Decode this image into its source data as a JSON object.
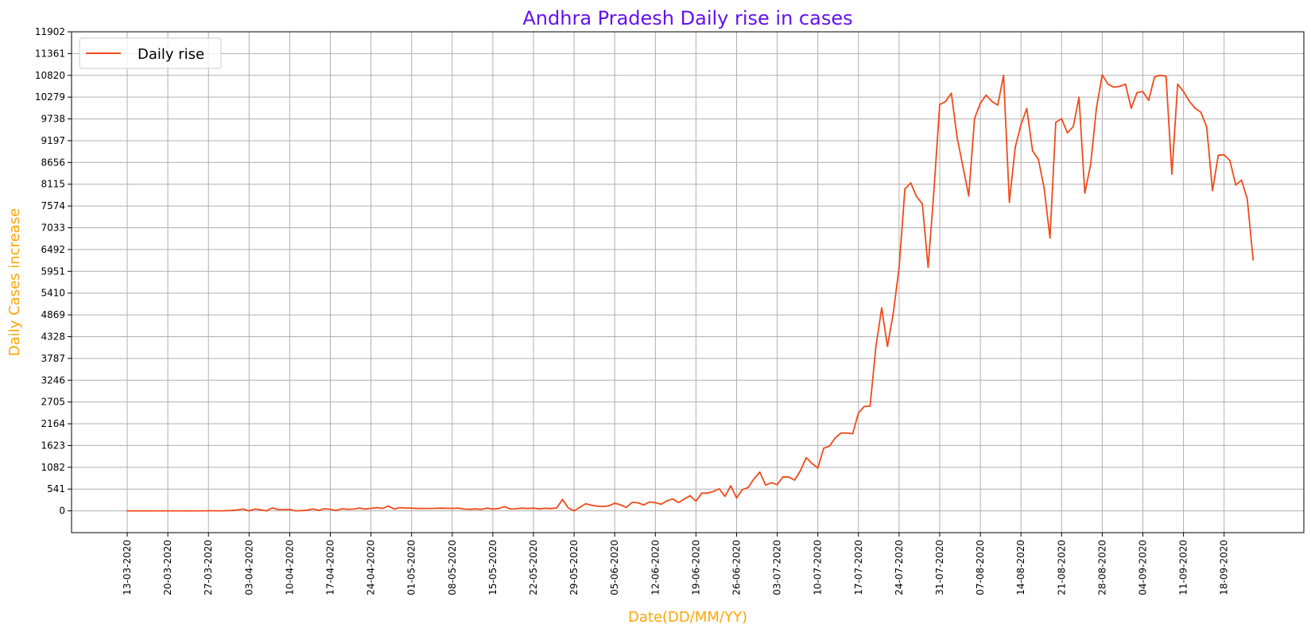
{
  "chart_data": {
    "type": "line",
    "title": "Andhra Pradesh Daily rise in cases",
    "xlabel": "Date(DD/MM/YY)",
    "ylabel": "Daily Cases increase",
    "x_start": "13-03-2020",
    "x_end": "24-09-2020",
    "x_step_days": 1,
    "x_tick_labels": [
      "13-03-2020",
      "20-03-2020",
      "27-03-2020",
      "03-04-2020",
      "10-04-2020",
      "17-04-2020",
      "24-04-2020",
      "01-05-2020",
      "08-05-2020",
      "15-05-2020",
      "22-05-2020",
      "29-05-2020",
      "05-06-2020",
      "12-06-2020",
      "19-06-2020",
      "26-06-2020",
      "03-07-2020",
      "10-07-2020",
      "17-07-2020",
      "24-07-2020",
      "31-07-2020",
      "07-08-2020",
      "14-08-2020",
      "21-08-2020",
      "28-08-2020",
      "04-09-2020",
      "11-09-2020",
      "18-09-2020"
    ],
    "y_ticks": [
      0,
      541,
      1082,
      1623,
      2164,
      2705,
      3246,
      3787,
      4328,
      4869,
      5410,
      5951,
      6492,
      7033,
      7574,
      8115,
      8656,
      9197,
      9738,
      10279,
      10820,
      11361,
      11902
    ],
    "ylim": [
      -541,
      11902
    ],
    "grid": true,
    "legend_position": "top-left",
    "series": [
      {
        "name": "Daily rise",
        "color": "#f24a1a",
        "values": [
          1,
          0,
          0,
          0,
          0,
          0,
          1,
          0,
          0,
          1,
          0,
          0,
          1,
          0,
          2,
          2,
          0,
          4,
          9,
          23,
          43,
          0,
          44,
          28,
          0,
          74,
          31,
          31,
          35,
          0,
          6,
          16,
          46,
          14,
          51,
          40,
          10,
          52,
          39,
          43,
          69,
          45,
          61,
          82,
          60,
          119,
          45,
          80,
          71,
          67,
          58,
          60,
          60,
          62,
          67,
          64,
          62,
          67,
          43,
          38,
          48,
          38,
          68,
          45,
          57,
          104,
          48,
          52,
          68,
          57,
          68,
          48,
          63,
          56,
          73,
          282,
          73,
          0,
          90,
          175,
          141,
          116,
          108,
          125,
          190,
          150,
          85,
          211,
          199,
          147,
          222,
          202,
          164,
          250,
          294,
          205,
          297,
          376,
          240,
          440,
          440,
          480,
          550,
          360,
          623,
          321,
          530,
          578,
          796,
          963,
          640,
          700,
          649,
          845,
          837,
          765,
          998,
          1322,
          1178,
          1062,
          1555,
          1608,
          1813,
          1933,
          1935,
          1916,
          2432,
          2593,
          2602,
          4074,
          5041,
          4086,
          4912,
          6045,
          7998,
          8147,
          7813,
          7627,
          6051,
          7948,
          10093,
          10167,
          10376,
          9276,
          8555,
          7822,
          9747,
          10128,
          10328,
          10171,
          10080,
          10820,
          7665,
          9024,
          9597,
          9996,
          8943,
          8732,
          8012,
          6780,
          9652,
          9742,
          9393,
          9544,
          10276,
          7895,
          8601,
          10004,
          10830,
          10603,
          10526,
          10548,
          10601,
          10004,
          10392,
          10418,
          10199,
          10776,
          10825,
          10794,
          8368,
          10601,
          10418,
          10175,
          10004,
          9901,
          9536,
          7956,
          8835,
          8846,
          8702,
          8096,
          8218,
          7738,
          6235
        ]
      }
    ]
  }
}
